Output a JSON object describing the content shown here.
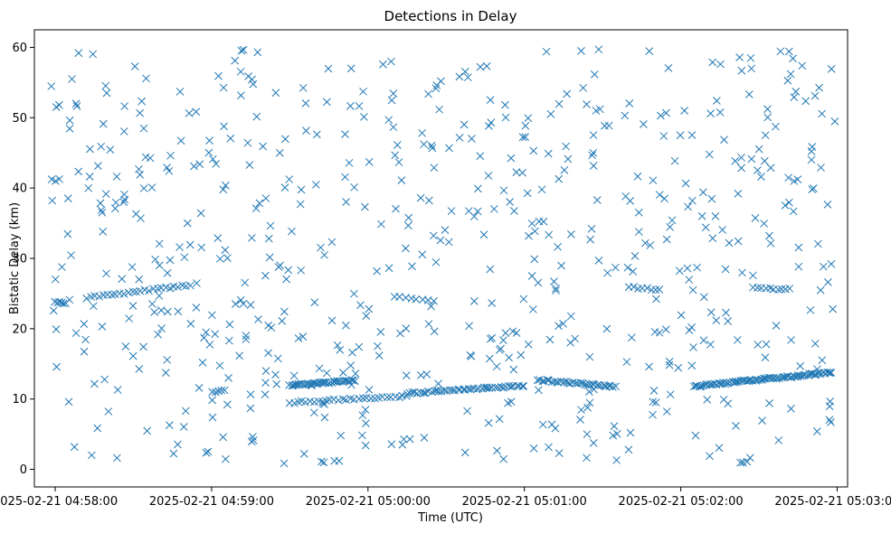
{
  "chart_data": {
    "type": "scatter",
    "title": "Detections in Delay",
    "xlabel": "Time (UTC)",
    "ylabel": "Bistatic Delay (km)",
    "x_range": [
      "2025-02-21 04:57:52",
      "2025-02-21 05:03:04"
    ],
    "ylim": [
      -2.5,
      62.5
    ],
    "marker": "x",
    "color": "#1f77b4",
    "grid": false,
    "x_tick_labels": [
      "2025-02-21 04:58:00",
      "2025-02-21 04:59:00",
      "2025-02-21 05:00:00",
      "2025-02-21 05:01:00",
      "2025-02-21 05:02:00",
      "2025-02-21 05:03:00"
    ],
    "y_ticks": [
      0,
      10,
      20,
      30,
      40,
      50,
      60
    ],
    "tracks": [
      {
        "x": [
          "2025-02-21 04:58:00",
          "2025-02-21 04:58:04"
        ],
        "delay_start": 23.8,
        "delay_end": 23.6,
        "count": 6
      },
      {
        "x": [
          "2025-02-21 04:58:12",
          "2025-02-21 04:58:52"
        ],
        "delay_start": 24.4,
        "delay_end": 26.2,
        "count": 26
      },
      {
        "x": [
          "2025-02-21 04:59:00",
          "2025-02-21 04:59:05"
        ],
        "delay_start": 11.0,
        "delay_end": 11.3,
        "count": 5
      },
      {
        "x": [
          "2025-02-21 04:59:30",
          "2025-02-21 04:59:55"
        ],
        "delay_start": 12.0,
        "delay_end": 12.6,
        "count": 40
      },
      {
        "x": [
          "2025-02-21 04:59:30",
          "2025-02-21 05:00:15"
        ],
        "delay_start": 9.5,
        "delay_end": 10.4,
        "count": 30
      },
      {
        "x": [
          "2025-02-21 05:00:10",
          "2025-02-21 05:00:25"
        ],
        "delay_start": 24.5,
        "delay_end": 24.0,
        "count": 8
      },
      {
        "x": [
          "2025-02-21 05:00:15",
          "2025-02-21 05:01:00"
        ],
        "delay_start": 10.8,
        "delay_end": 11.9,
        "count": 45
      },
      {
        "x": [
          "2025-02-21 05:01:05",
          "2025-02-21 05:01:35"
        ],
        "delay_start": 12.7,
        "delay_end": 11.8,
        "count": 34
      },
      {
        "x": [
          "2025-02-21 05:01:40",
          "2025-02-21 05:01:52"
        ],
        "delay_start": 25.9,
        "delay_end": 25.5,
        "count": 8
      },
      {
        "x": [
          "2025-02-21 05:02:05",
          "2025-02-21 05:02:58"
        ],
        "delay_start": 11.8,
        "delay_end": 13.8,
        "count": 80
      },
      {
        "x": [
          "2025-02-21 05:02:28",
          "2025-02-21 05:02:42"
        ],
        "delay_start": 25.8,
        "delay_end": 25.6,
        "count": 10
      }
    ],
    "scattered": {
      "x": [
        "2025-02-21 04:57:58",
        "2025-02-21 05:03:00"
      ],
      "ylim": [
        0.5,
        60
      ],
      "count": 640
    }
  }
}
